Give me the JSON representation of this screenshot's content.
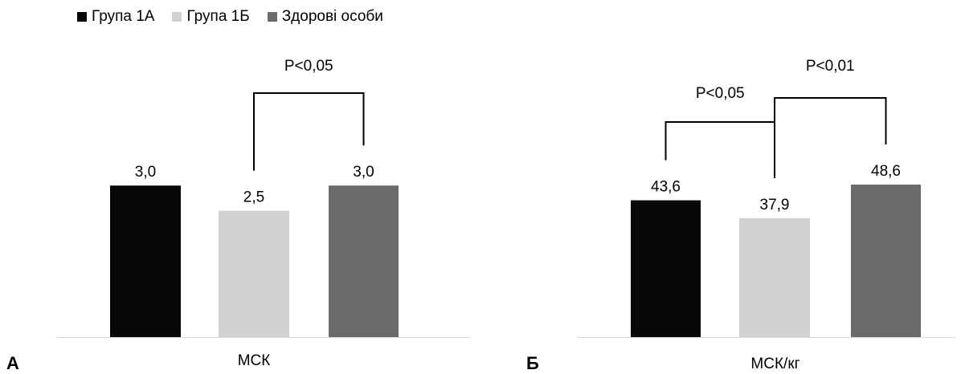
{
  "legend": [
    {
      "label": "Група 1А",
      "color": "#080808"
    },
    {
      "label": "Група 1Б",
      "color": "#d1d1d1"
    },
    {
      "label": "Здорові особи",
      "color": "#6a6a6a"
    }
  ],
  "panels": {
    "a": {
      "letter": "А"
    },
    "b": {
      "letter": "Б"
    }
  },
  "chart_data": [
    {
      "type": "bar",
      "panel": "А",
      "categories": [
        "МСК"
      ],
      "xlabel": "МСК",
      "ylim": [
        0,
        4.1
      ],
      "grid": false,
      "legend": "top-left",
      "series": [
        {
          "name": "Група 1А",
          "values": [
            3.0
          ],
          "label": "3,0",
          "color": "#080808"
        },
        {
          "name": "Група 1Б",
          "values": [
            2.5
          ],
          "label": "2,5",
          "color": "#d1d1d1"
        },
        {
          "name": "Здорові особи",
          "values": [
            3.0
          ],
          "label": "3,0",
          "color": "#6a6a6a"
        }
      ],
      "annotations": [
        {
          "text": "P<0,05",
          "between": [
            "Група 1Б",
            "Здорові особи"
          ]
        }
      ]
    },
    {
      "type": "bar",
      "panel": "Б",
      "categories": [
        "МСК/кг"
      ],
      "xlabel": "МСК/кг",
      "ylim": [
        0,
        66
      ],
      "grid": false,
      "series": [
        {
          "name": "Група 1А",
          "values": [
            43.6
          ],
          "label": "43,6",
          "color": "#080808"
        },
        {
          "name": "Група 1Б",
          "values": [
            37.9
          ],
          "label": "37,9",
          "color": "#d1d1d1"
        },
        {
          "name": "Здорові особи",
          "values": [
            48.6
          ],
          "label": "48,6",
          "color": "#6a6a6a"
        }
      ],
      "annotations": [
        {
          "text": "P<0,05",
          "between": [
            "Група 1А",
            "Група 1Б"
          ]
        },
        {
          "text": "P<0,01",
          "between": [
            "Група 1Б",
            "Здорові особи"
          ]
        }
      ]
    }
  ]
}
